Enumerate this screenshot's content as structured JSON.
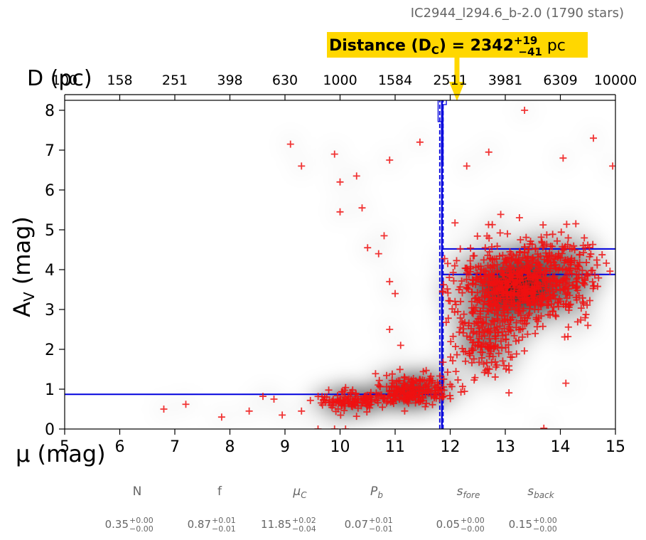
{
  "header": {
    "subtitle": "IC2944_l294.6_b-2.0 (1790 stars)",
    "distance_prefix": "Distance (D",
    "distance_sub": "C",
    "distance_mid": ") = 2342",
    "distance_plus": "+19",
    "distance_minus": "−41",
    "distance_unit": " pc"
  },
  "colors": {
    "accent": "#FFD700",
    "stars": "#EE1111",
    "fit_line": "#0000DD",
    "params_text": "#666666"
  },
  "chart_data": {
    "type": "scatter",
    "title": "IC2944_l294.6_b-2.0 (1790 stars)",
    "xlabel": "μ (mag)",
    "ylabel": "A_V (mag)",
    "top_xlabel": "D (pc)",
    "xlim": [
      5,
      15
    ],
    "ylim": [
      0,
      8.25
    ],
    "x_ticks": [
      5,
      6,
      7,
      8,
      9,
      10,
      11,
      12,
      13,
      14,
      15
    ],
    "y_ticks": [
      0,
      1,
      2,
      3,
      4,
      5,
      6,
      7,
      8
    ],
    "top_ticks": [
      "100",
      "158",
      "251",
      "398",
      "630",
      "1000",
      "1584",
      "2511",
      "3981",
      "6309",
      "10000"
    ],
    "distance_modulus": 11.85,
    "distance_bounds": [
      11.81,
      11.87
    ],
    "extinction_foreground": 0.87,
    "extinction_background": [
      3.88,
      4.52
    ],
    "params": [
      {
        "name": "N",
        "value": "0.35",
        "plus": "+0.00",
        "minus": "−0.00"
      },
      {
        "name": "f",
        "value": "0.87",
        "plus": "+0.01",
        "minus": "−0.01"
      },
      {
        "name": "μ_C",
        "value": "11.85",
        "plus": "+0.02",
        "minus": "−0.04"
      },
      {
        "name": "P_b",
        "value": "0.07",
        "plus": "+0.01",
        "minus": "−0.01"
      },
      {
        "name": "s_fore",
        "value": "0.05",
        "plus": "+0.00",
        "minus": "−0.00"
      },
      {
        "name": "s_back",
        "value": "0.15",
        "plus": "+0.00",
        "minus": "−0.00"
      }
    ],
    "density_clusters": [
      {
        "mu": 13.2,
        "av": 3.6,
        "spread_mu": 0.9,
        "spread_av": 0.9,
        "n": 700
      },
      {
        "mu": 12.6,
        "av": 2.2,
        "spread_mu": 0.5,
        "spread_av": 0.8,
        "n": 160
      },
      {
        "mu": 11.3,
        "av": 0.95,
        "spread_mu": 0.55,
        "spread_av": 0.3,
        "n": 220
      },
      {
        "mu": 10.2,
        "av": 0.7,
        "spread_mu": 0.5,
        "spread_av": 0.2,
        "n": 120
      },
      {
        "mu": 14.2,
        "av": 4.1,
        "spread_mu": 0.4,
        "spread_av": 0.8,
        "n": 120
      }
    ],
    "outlier_stars": [
      [
        9.1,
        7.15
      ],
      [
        9.3,
        6.6
      ],
      [
        9.9,
        6.9
      ],
      [
        10.0,
        6.2
      ],
      [
        10.0,
        5.45
      ],
      [
        10.3,
        6.35
      ],
      [
        10.4,
        5.55
      ],
      [
        10.9,
        6.75
      ],
      [
        11.45,
        7.2
      ],
      [
        13.35,
        8.0
      ],
      [
        14.6,
        7.3
      ],
      [
        14.05,
        6.8
      ],
      [
        14.95,
        6.6
      ],
      [
        6.8,
        0.5
      ],
      [
        7.2,
        0.62
      ],
      [
        7.85,
        0.3
      ],
      [
        8.35,
        0.45
      ],
      [
        8.6,
        0.82
      ],
      [
        8.95,
        0.35
      ],
      [
        9.3,
        0.45
      ],
      [
        10.5,
        4.55
      ],
      [
        10.7,
        4.4
      ],
      [
        10.8,
        4.85
      ],
      [
        10.9,
        3.7
      ],
      [
        11.0,
        3.4
      ],
      [
        11.1,
        2.1
      ],
      [
        10.9,
        2.5
      ],
      [
        13.7,
        0.02
      ],
      [
        14.5,
        2.6
      ],
      [
        14.1,
        1.15
      ],
      [
        8.8,
        0.75
      ],
      [
        9.6,
        0.0
      ],
      [
        9.9,
        0.0
      ],
      [
        10.1,
        0.0
      ],
      [
        12.3,
        6.6
      ],
      [
        12.7,
        6.95
      ]
    ]
  }
}
